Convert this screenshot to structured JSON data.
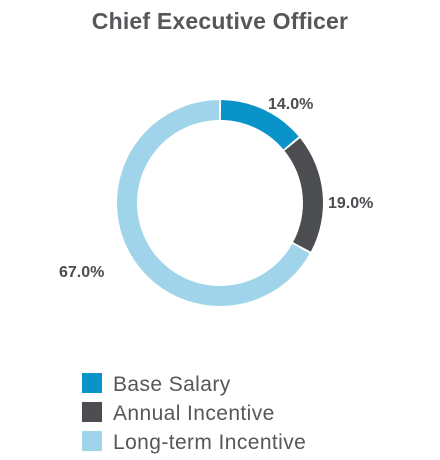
{
  "chart_data": {
    "type": "pie",
    "title": "Chief Executive Officer",
    "series": [
      {
        "name": "Base Salary",
        "value": 14.0,
        "label": "14.0%",
        "color": "#0a93c9"
      },
      {
        "name": "Annual Incentive",
        "value": 19.0,
        "label": "19.0%",
        "color": "#4b4d51"
      },
      {
        "name": "Long-term Incentive",
        "value": 67.0,
        "label": "67.0%",
        "color": "#9fd4ea"
      }
    ],
    "donut": true,
    "legend": "bottom-left"
  }
}
